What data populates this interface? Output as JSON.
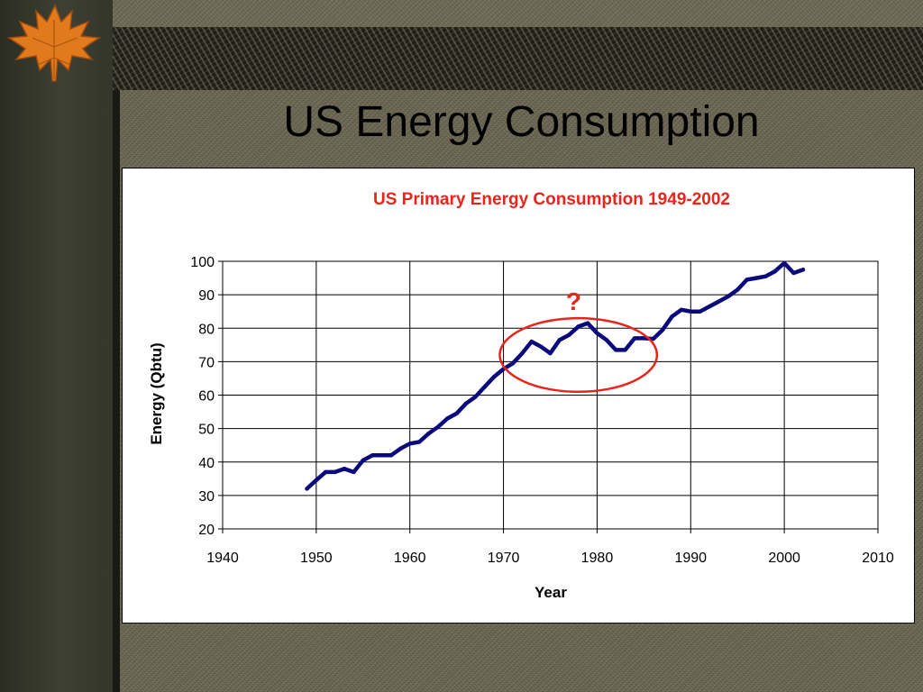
{
  "slide": {
    "title": "US Energy Consumption"
  },
  "chart_data": {
    "type": "line",
    "title": "US Primary Energy Consumption 1949-2002",
    "xlabel": "Year",
    "ylabel": "Energy (Qbtu)",
    "xlim": [
      1940,
      2010
    ],
    "ylim": [
      20,
      100
    ],
    "x_ticks": [
      1940,
      1950,
      1960,
      1970,
      1980,
      1990,
      2000,
      2010
    ],
    "y_ticks": [
      20,
      30,
      40,
      50,
      60,
      70,
      80,
      90,
      100
    ],
    "grid": true,
    "legend": "none",
    "annotation": {
      "text": "?",
      "shape": "ellipse",
      "x_range": [
        1970,
        1986
      ],
      "y_range": [
        61,
        83
      ]
    },
    "colors": {
      "line": "#0a0a7e",
      "title": "#e8251c",
      "annotation": "#e8251c"
    },
    "x": [
      1949,
      1950,
      1951,
      1952,
      1953,
      1954,
      1955,
      1956,
      1957,
      1958,
      1959,
      1960,
      1961,
      1962,
      1963,
      1964,
      1965,
      1966,
      1967,
      1968,
      1969,
      1970,
      1971,
      1972,
      1973,
      1974,
      1975,
      1976,
      1977,
      1978,
      1979,
      1980,
      1981,
      1982,
      1983,
      1984,
      1985,
      1986,
      1987,
      1988,
      1989,
      1990,
      1991,
      1992,
      1993,
      1994,
      1995,
      1996,
      1997,
      1998,
      1999,
      2000,
      2001,
      2002
    ],
    "values": [
      32,
      34.6,
      37,
      37,
      38,
      37,
      40.5,
      42,
      42,
      42,
      44,
      45.5,
      46,
      48.5,
      50.5,
      53,
      54.5,
      57.5,
      59.5,
      62.5,
      65.5,
      67.8,
      69.5,
      72.5,
      76,
      74.5,
      72.5,
      76.5,
      78,
      80.5,
      81.5,
      78.5,
      76.5,
      73.5,
      73.5,
      77,
      77,
      76.8,
      79.5,
      83.5,
      85.5,
      85,
      85,
      86.5,
      88,
      89.5,
      91.5,
      94.5,
      95,
      95.5,
      97,
      99.5,
      96.5,
      97.5
    ]
  }
}
